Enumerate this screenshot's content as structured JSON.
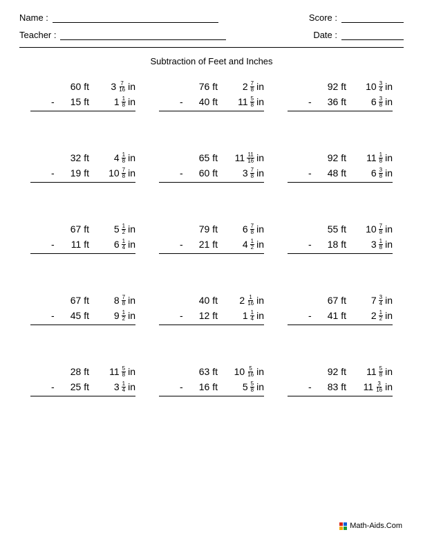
{
  "header": {
    "name_label": "Name :",
    "teacher_label": "Teacher :",
    "score_label": "Score :",
    "date_label": "Date :"
  },
  "title": "Subtraction of Feet and Inches",
  "unit_ft": "ft",
  "unit_in": "in",
  "operator": "-",
  "footer": "Math-Aids.Com",
  "problems": [
    {
      "a": {
        "ft": "60",
        "whole": "3",
        "num": "7",
        "den": "16"
      },
      "b": {
        "ft": "15",
        "whole": "1",
        "num": "1",
        "den": "8"
      }
    },
    {
      "a": {
        "ft": "76",
        "whole": "2",
        "num": "7",
        "den": "8"
      },
      "b": {
        "ft": "40",
        "whole": "11",
        "num": "5",
        "den": "8"
      }
    },
    {
      "a": {
        "ft": "92",
        "whole": "10",
        "num": "3",
        "den": "4"
      },
      "b": {
        "ft": "36",
        "whole": "6",
        "num": "3",
        "den": "8"
      }
    },
    {
      "a": {
        "ft": "32",
        "whole": "4",
        "num": "1",
        "den": "8"
      },
      "b": {
        "ft": "19",
        "whole": "10",
        "num": "7",
        "den": "8"
      }
    },
    {
      "a": {
        "ft": "65",
        "whole": "11",
        "num": "11",
        "den": "16"
      },
      "b": {
        "ft": "60",
        "whole": "3",
        "num": "7",
        "den": "8"
      }
    },
    {
      "a": {
        "ft": "92",
        "whole": "11",
        "num": "1",
        "den": "8"
      },
      "b": {
        "ft": "48",
        "whole": "6",
        "num": "3",
        "den": "8"
      }
    },
    {
      "a": {
        "ft": "67",
        "whole": "5",
        "num": "1",
        "den": "2"
      },
      "b": {
        "ft": "11",
        "whole": "6",
        "num": "1",
        "den": "4"
      }
    },
    {
      "a": {
        "ft": "79",
        "whole": "6",
        "num": "7",
        "den": "8"
      },
      "b": {
        "ft": "21",
        "whole": "4",
        "num": "1",
        "den": "2"
      }
    },
    {
      "a": {
        "ft": "55",
        "whole": "10",
        "num": "7",
        "den": "8"
      },
      "b": {
        "ft": "18",
        "whole": "3",
        "num": "1",
        "den": "8"
      }
    },
    {
      "a": {
        "ft": "67",
        "whole": "8",
        "num": "7",
        "den": "8"
      },
      "b": {
        "ft": "45",
        "whole": "9",
        "num": "1",
        "den": "2"
      }
    },
    {
      "a": {
        "ft": "40",
        "whole": "2",
        "num": "1",
        "den": "16"
      },
      "b": {
        "ft": "12",
        "whole": "1",
        "num": "1",
        "den": "4"
      }
    },
    {
      "a": {
        "ft": "67",
        "whole": "7",
        "num": "3",
        "den": "4"
      },
      "b": {
        "ft": "41",
        "whole": "2",
        "num": "1",
        "den": "2"
      }
    },
    {
      "a": {
        "ft": "28",
        "whole": "11",
        "num": "5",
        "den": "8"
      },
      "b": {
        "ft": "25",
        "whole": "3",
        "num": "1",
        "den": "4"
      }
    },
    {
      "a": {
        "ft": "63",
        "whole": "10",
        "num": "5",
        "den": "16"
      },
      "b": {
        "ft": "16",
        "whole": "5",
        "num": "5",
        "den": "8"
      }
    },
    {
      "a": {
        "ft": "92",
        "whole": "11",
        "num": "5",
        "den": "8"
      },
      "b": {
        "ft": "83",
        "whole": "11",
        "num": "3",
        "den": "16"
      }
    }
  ]
}
